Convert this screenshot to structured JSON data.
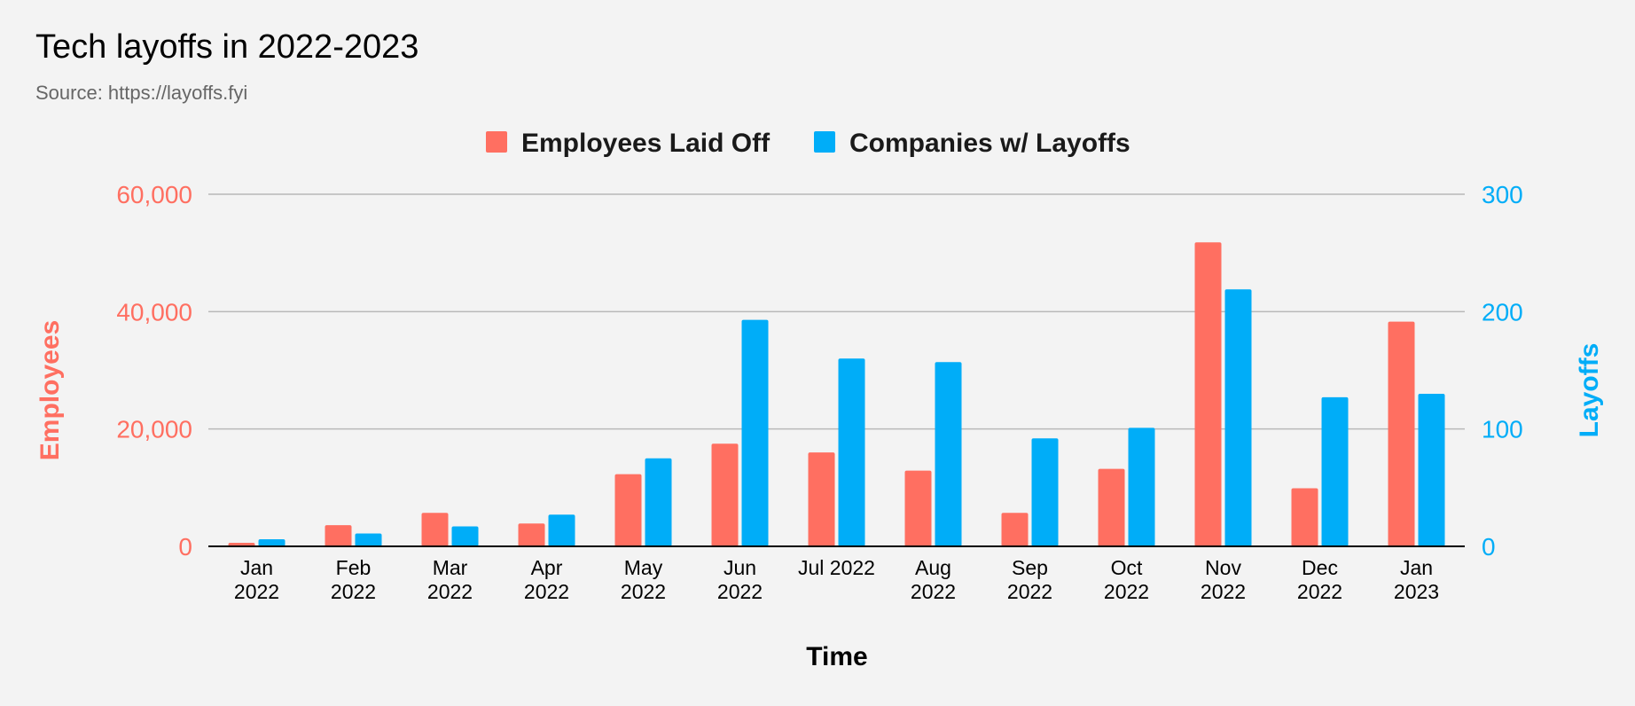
{
  "title": "Tech layoffs in 2022-2023",
  "subtitle": "Source: https://layoffs.fyi",
  "colors": {
    "employees": "#ff6f61",
    "companies": "#00adf8",
    "grid": "#b8b8b8",
    "axis": "#000000",
    "background": "#f3f3f3"
  },
  "chart_data": {
    "type": "bar",
    "title": "Tech layoffs in 2022-2023",
    "subtitle": "Source: https://layoffs.fyi",
    "xlabel": "Time",
    "ylabel_left": "Employees",
    "ylabel_right": "Layoffs",
    "ylim_left": [
      0,
      60000
    ],
    "ylim_right": [
      0,
      300
    ],
    "yticks_left": [
      "0",
      "20,000",
      "40,000",
      "60,000"
    ],
    "yticks_right": [
      "0",
      "100",
      "200",
      "300"
    ],
    "legend_position": "top-center",
    "grid": true,
    "categories": [
      [
        "Jan",
        "2022"
      ],
      [
        "Feb",
        "2022"
      ],
      [
        "Mar",
        "2022"
      ],
      [
        "Apr",
        "2022"
      ],
      [
        "May",
        "2022"
      ],
      [
        "Jun",
        "2022"
      ],
      [
        "Jul 2022"
      ],
      [
        "Aug",
        "2022"
      ],
      [
        "Sep",
        "2022"
      ],
      [
        "Oct",
        "2022"
      ],
      [
        "Nov",
        "2022"
      ],
      [
        "Dec",
        "2022"
      ],
      [
        "Jan",
        "2023"
      ]
    ],
    "series": [
      {
        "name": "Employees Laid Off",
        "axis": "left",
        "values": [
          600,
          3600,
          5700,
          3900,
          12300,
          17500,
          16000,
          12900,
          5700,
          13200,
          51800,
          9900,
          38300
        ]
      },
      {
        "name": "Companies w/ Layoffs",
        "axis": "right",
        "values": [
          6,
          11,
          17,
          27,
          75,
          193,
          160,
          157,
          92,
          101,
          219,
          127,
          130
        ]
      }
    ]
  }
}
